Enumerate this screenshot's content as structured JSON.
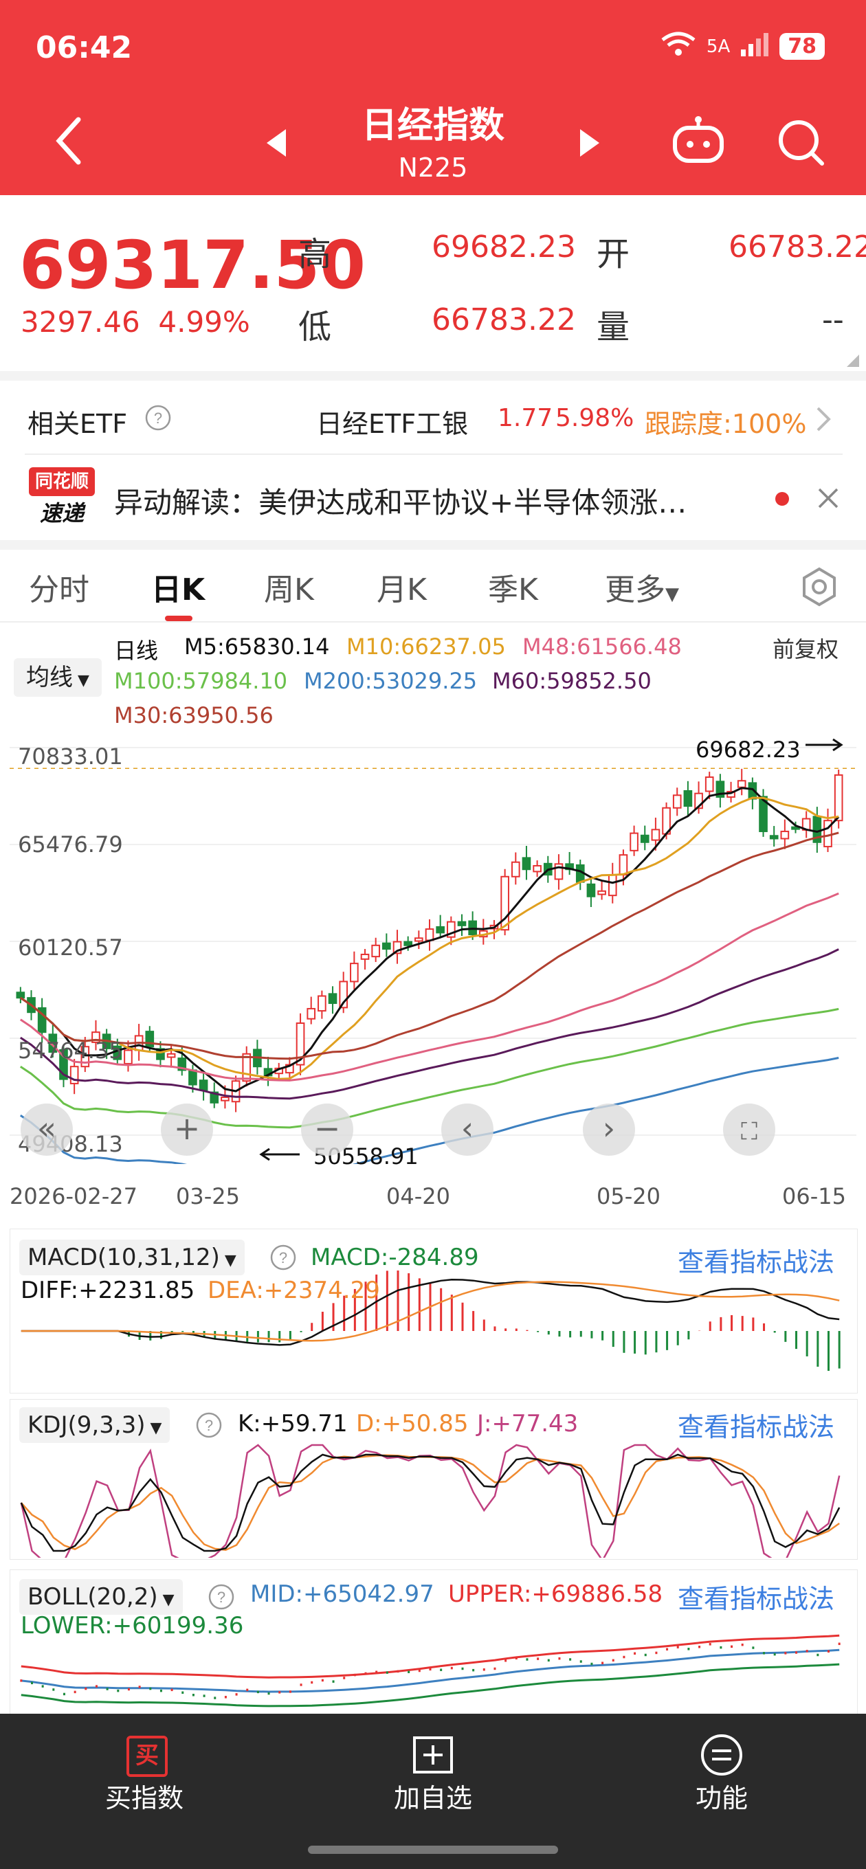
{
  "status": {
    "time": "06:42",
    "signal": "5A",
    "battery": "78"
  },
  "header": {
    "title": "日经指数",
    "code": "N225"
  },
  "quote": {
    "price": "69317.50",
    "change": "3297.46",
    "change_pct": "4.99%",
    "high_label": "高",
    "high": "69682.23",
    "open_label": "开",
    "open": "66783.22",
    "low_label": "低",
    "low": "66783.22",
    "vol_label": "量",
    "vol": "--"
  },
  "etf": {
    "label": "相关ETF",
    "name": "日经ETF工银",
    "price": "1.77",
    "pct": "5.98%",
    "tracking": "跟踪度:100%"
  },
  "news": {
    "badge_top": "同花顺",
    "badge_bottom": "速递",
    "text": "异动解读：美伊达成和平协议+半导体领涨…"
  },
  "tabs": [
    "分时",
    "日K",
    "周K",
    "月K",
    "季K",
    "更多"
  ],
  "active_tab": 1,
  "ma": {
    "mode": "均线",
    "period": "日线",
    "adjust": "前复权",
    "m5": "M5:65830.14",
    "m10": "M10:66237.05",
    "m48": "M48:61566.48",
    "m100": "M100:57984.10",
    "m200": "M200:53029.25",
    "m60": "M60:59852.50",
    "m30": "M30:63950.56"
  },
  "chart": {
    "y_labels": [
      "70833.01",
      "65476.79",
      "60120.57",
      "54764.35",
      "49408.13"
    ],
    "x_labels": [
      "2026-02-27",
      "03-25",
      "04-20",
      "05-20",
      "06-15"
    ],
    "max_label": "69682.23",
    "min_label": "50558.91",
    "colors": {
      "up": "#e63232",
      "down": "#1c8a3c",
      "m5": "#111111",
      "m10": "#e0a020",
      "m30": "#b04030",
      "m48": "#e06080",
      "m60": "#5a1a5a",
      "m100": "#6ac04a",
      "m200": "#3d80c0"
    },
    "closes": [
      57000,
      56200,
      55100,
      54000,
      52500,
      53200,
      54300,
      55100,
      54200,
      53600,
      54100,
      54900,
      54300,
      53600,
      53900,
      53000,
      52200,
      51900,
      51200,
      51500,
      52400,
      53900,
      53200,
      52700,
      53100,
      53300,
      55600,
      56400,
      57100,
      56700,
      57900,
      58900,
      59400,
      59900,
      59700,
      60100,
      59900,
      60300,
      60800,
      60600,
      61200,
      61000,
      60500,
      60700,
      61000,
      63700,
      64500,
      64100,
      64300,
      63800,
      64400,
      64100,
      63400,
      62600,
      62900,
      63800,
      64900,
      66100,
      65600,
      66300,
      67500,
      68200,
      67600,
      68300,
      69200,
      68100,
      68400,
      69000,
      68000,
      66200,
      65800,
      66200,
      66400,
      66900,
      65600,
      66800,
      69317.5
    ]
  },
  "macd": {
    "title": "MACD(10,31,12)",
    "macd": "MACD:-284.89",
    "diff": "DIFF:+2231.85",
    "dea": "DEA:+2374.29",
    "link": "查看指标战法"
  },
  "kdj": {
    "title": "KDJ(9,3,3)",
    "k": "K:+59.71",
    "d": "D:+50.85",
    "j": "J:+77.43",
    "link": "查看指标战法"
  },
  "boll": {
    "title": "BOLL(20,2)",
    "mid": "MID:+65042.97",
    "upper": "UPPER:+69886.58",
    "lower": "LOWER:+60199.36",
    "link": "查看指标战法"
  },
  "bottom": {
    "buy": "买指数",
    "buy_icon": "买",
    "add": "加自选",
    "func": "功能"
  }
}
